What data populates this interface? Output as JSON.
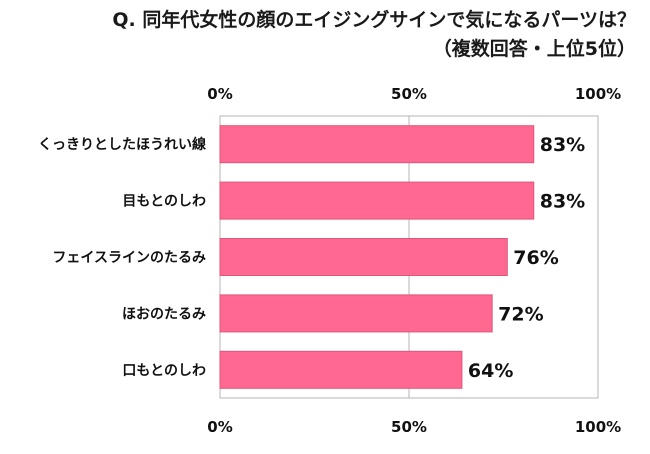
{
  "chart_data": {
    "type": "bar",
    "orientation": "horizontal",
    "title": "Q. 同年代女性の顔のエイジングサインで気になるパーツは？",
    "subtitle": "（複数回答・上位5位）",
    "categories": [
      "くっきりとしたほうれい線",
      "目もとのしわ",
      "フェイスラインのたるみ",
      "ほおのたるみ",
      "口もとのしわ"
    ],
    "values": [
      83,
      83,
      76,
      72,
      64
    ],
    "value_labels": [
      "83%",
      "83%",
      "76%",
      "72%",
      "64%"
    ],
    "x_ticks": [
      "0%",
      "50%",
      "100%"
    ],
    "xlim": [
      0,
      100
    ],
    "grid": true,
    "legend": "none",
    "bar_color": "#fe6891",
    "bar_stroke": "#e0557a"
  }
}
